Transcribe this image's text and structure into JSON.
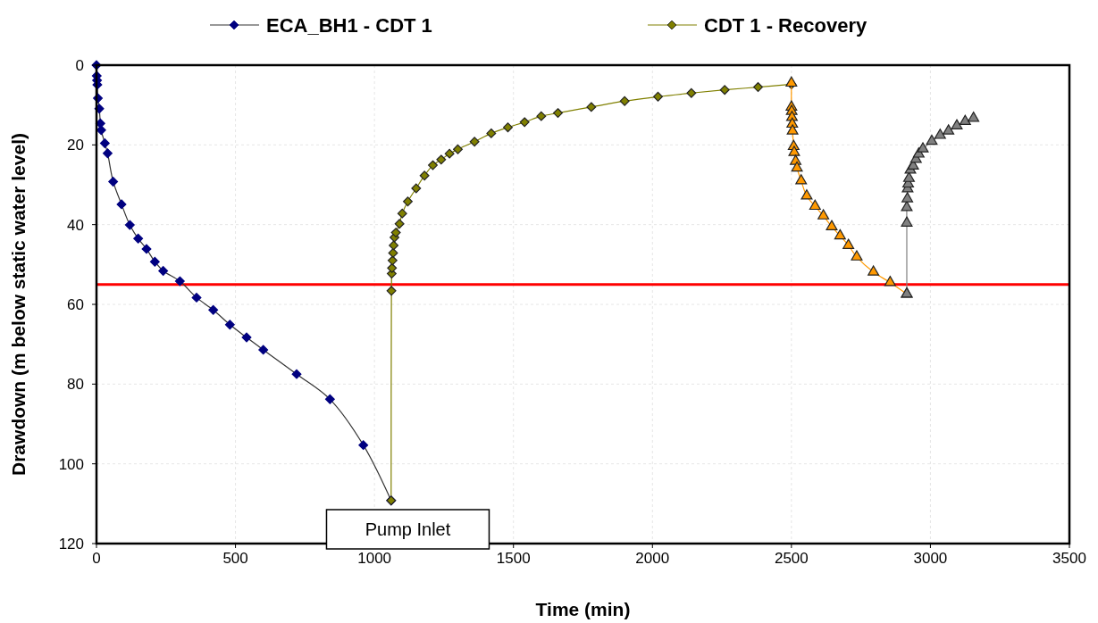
{
  "chart_data": {
    "type": "line",
    "xlabel": "Time (min)",
    "ylabel": "Drawdown (m below static water level)",
    "xlim": [
      0,
      3500
    ],
    "xticks": [
      0,
      500,
      1000,
      1500,
      2000,
      2500,
      3000,
      3500
    ],
    "ylim": [
      120,
      0
    ],
    "yticks": [
      0,
      20,
      40,
      60,
      80,
      100,
      120
    ],
    "grid": true,
    "legend": "top",
    "series": [
      {
        "name": "ECA_BH1 - CDT 1",
        "color": "#000080",
        "marker": "diamond",
        "x": [
          0,
          1,
          2,
          3,
          5,
          10,
          14,
          17,
          30,
          40,
          60,
          90,
          120,
          150,
          180,
          210,
          240,
          300,
          360,
          420,
          480,
          540,
          600,
          720,
          840,
          960,
          1060
        ],
        "values": [
          0,
          2.7,
          3.8,
          4.9,
          8.3,
          10.9,
          14.6,
          16.3,
          19.6,
          22.1,
          29.2,
          34.9,
          40.1,
          43.5,
          46.1,
          49.3,
          51.6,
          54.2,
          58.3,
          61.4,
          65.1,
          68.3,
          71.4,
          77.5,
          83.8,
          95.3,
          109.2
        ]
      },
      {
        "name": "CDT 1 - Recovery",
        "color": "#808000",
        "marker": "diamond",
        "x": [
          1060,
          1061,
          1062,
          1063,
          1065,
          1067,
          1069,
          1072,
          1077,
          1090,
          1100,
          1120,
          1150,
          1180,
          1210,
          1240,
          1270,
          1300,
          1360,
          1420,
          1480,
          1540,
          1600,
          1660,
          1780,
          1900,
          2020,
          2140,
          2260,
          2380,
          2500
        ],
        "values": [
          109.2,
          56.6,
          52.3,
          50.9,
          49,
          47.1,
          45.2,
          43.2,
          42,
          39.8,
          37.2,
          34.2,
          30.9,
          27.7,
          25.1,
          23.7,
          22.2,
          21.1,
          19.2,
          17.1,
          15.6,
          14.3,
          12.8,
          12,
          10.5,
          9,
          7.9,
          7,
          6.2,
          5.5,
          4.8
        ]
      },
      {
        "color": "#ff9900",
        "marker": "triangle",
        "x": [
          2500,
          2500,
          2501,
          2502,
          2503,
          2504,
          2508,
          2510,
          2515,
          2520,
          2535,
          2555,
          2585,
          2615,
          2645,
          2675,
          2705,
          2735,
          2795,
          2855,
          2915
        ],
        "values": [
          4.5,
          10.5,
          11.6,
          13.1,
          14.8,
          16.5,
          20.4,
          21.9,
          24.1,
          25.8,
          29,
          32.8,
          35.4,
          37.8,
          40.5,
          42.8,
          45.2,
          48.1,
          51.9,
          54.5,
          57.4
        ]
      },
      {
        "color": "#808080",
        "marker": "triangle",
        "x": [
          2915,
          2915,
          2915,
          2917,
          2918,
          2920,
          2923,
          2928,
          2938,
          2948,
          2958,
          2973,
          3005,
          3035,
          3065,
          3095,
          3125,
          3155
        ],
        "values": [
          57.4,
          39.6,
          35.7,
          33.5,
          31,
          29.8,
          28.4,
          26.3,
          25.3,
          23.6,
          22.3,
          21,
          19.1,
          17.6,
          16.5,
          15.2,
          14.1,
          13.3
        ]
      }
    ],
    "ref_lines": [
      {
        "axis": "y",
        "value": 55,
        "color": "#ff0000"
      }
    ],
    "annotations": [
      "Pump Inlet"
    ]
  }
}
